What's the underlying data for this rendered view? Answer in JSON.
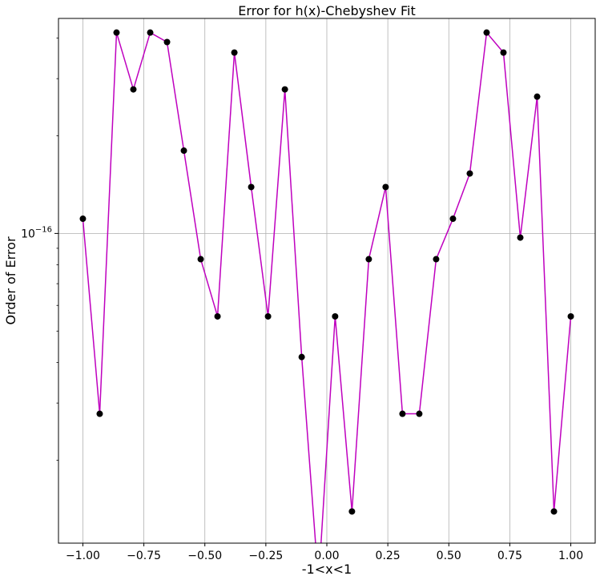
{
  "chart_data": {
    "type": "line",
    "title": "Error for h(x)-Chebyshev Fit",
    "xlabel": "-1<x<1",
    "ylabel": "Order of Error",
    "xlim": [
      -1.1,
      1.1
    ],
    "ylim": [
      1.11e-17,
      4.6e-16
    ],
    "yscale": "log",
    "grid": true,
    "x_ticks": [
      -1.0,
      -0.75,
      -0.5,
      -0.25,
      0.0,
      0.25,
      0.5,
      0.75,
      1.0
    ],
    "x_tick_labels": [
      "−1.00",
      "−0.75",
      "−0.50",
      "−0.25",
      "0.00",
      "0.25",
      "0.50",
      "0.75",
      "1.00"
    ],
    "y_major_tick": 1e-16,
    "y_major_tick_base": "10",
    "y_major_tick_exponent": "−16",
    "line_color": "#bf00bf",
    "marker_color": "#000000",
    "series": [
      {
        "x": [
          -1.0,
          -0.931,
          -0.862,
          -0.793,
          -0.724,
          -0.655,
          -0.586,
          -0.517,
          -0.448,
          -0.379,
          -0.31,
          -0.241,
          -0.172,
          -0.103,
          -0.034,
          0.034,
          0.103,
          0.172,
          0.241,
          0.31,
          0.379,
          0.448,
          0.517,
          0.586,
          0.655,
          0.724,
          0.793,
          0.862,
          0.931,
          1.0
        ],
        "y": [
          1.11e-16,
          2.78e-17,
          4.16e-16,
          2.78e-16,
          4.16e-16,
          3.89e-16,
          1.8e-16,
          8.33e-17,
          5.55e-17,
          3.61e-16,
          1.39e-16,
          5.55e-17,
          2.78e-16,
          4.16e-17,
          0,
          5.55e-17,
          1.39e-17,
          8.33e-17,
          1.39e-16,
          2.78e-17,
          2.78e-17,
          8.33e-17,
          1.11e-16,
          1.53e-16,
          4.16e-16,
          3.61e-16,
          9.71e-17,
          2.64e-16,
          1.39e-17,
          5.55e-17
        ]
      }
    ]
  }
}
